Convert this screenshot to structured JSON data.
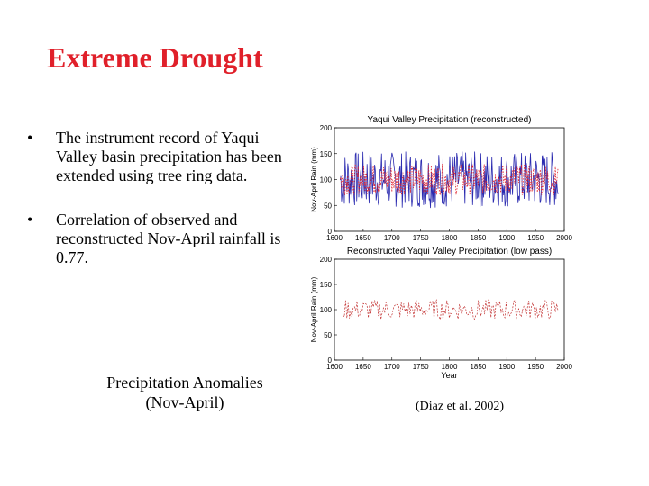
{
  "slide": {
    "title": "Extreme Drought",
    "bullets": [
      {
        "text": "The instrument record of Yaqui Valley basin precipitation has been extended using tree ring data."
      },
      {
        "text": "Correlation of observed and reconstructed Nov-April rainfall is 0.77."
      }
    ],
    "caption_left": "Precipitation Anomalies (Nov-April)",
    "caption_right": "(Diaz et al. 2002)"
  },
  "chart_data": [
    {
      "type": "line",
      "title": "Yaqui Valley Precipitation (reconstructed)",
      "xlabel": "",
      "ylabel": "Nov-April Rain (mm)",
      "xlim": [
        1600,
        2000
      ],
      "ylim": [
        0,
        200
      ],
      "xticks": [
        "1600",
        "1650",
        "1700",
        "1750",
        "1800",
        "1850",
        "1900",
        "1950",
        "2000"
      ],
      "yticks": [
        "0",
        "50",
        "100",
        "150",
        "200"
      ],
      "colors": {
        "reconstructed": "#2b2bb0",
        "observed": "#e0202a"
      },
      "series": [
        {
          "style": "solid",
          "color": "#2b2bb0",
          "x_range": [
            1610,
            1990
          ],
          "base": 100,
          "amplitude": 55
        },
        {
          "style": "dotted",
          "color": "#e0202a",
          "x_range": [
            1610,
            1990
          ],
          "base": 100,
          "amplitude": 30
        }
      ]
    },
    {
      "type": "line",
      "title": "Reconstructed Yaqui Valley Precipitation (low pass)",
      "xlabel": "Year",
      "ylabel": "Nov-April Rain (mm)",
      "xlim": [
        1600,
        2000
      ],
      "ylim": [
        0,
        200
      ],
      "xticks": [
        "1600",
        "1650",
        "1700",
        "1750",
        "1800",
        "1850",
        "1900",
        "1950",
        "2000"
      ],
      "yticks": [
        "0",
        "50",
        "100",
        "150",
        "200"
      ],
      "series": [
        {
          "style": "dashed",
          "color": "#c23030",
          "x_range": [
            1615,
            1990
          ],
          "base": 100,
          "amplitude": 25
        }
      ]
    }
  ]
}
